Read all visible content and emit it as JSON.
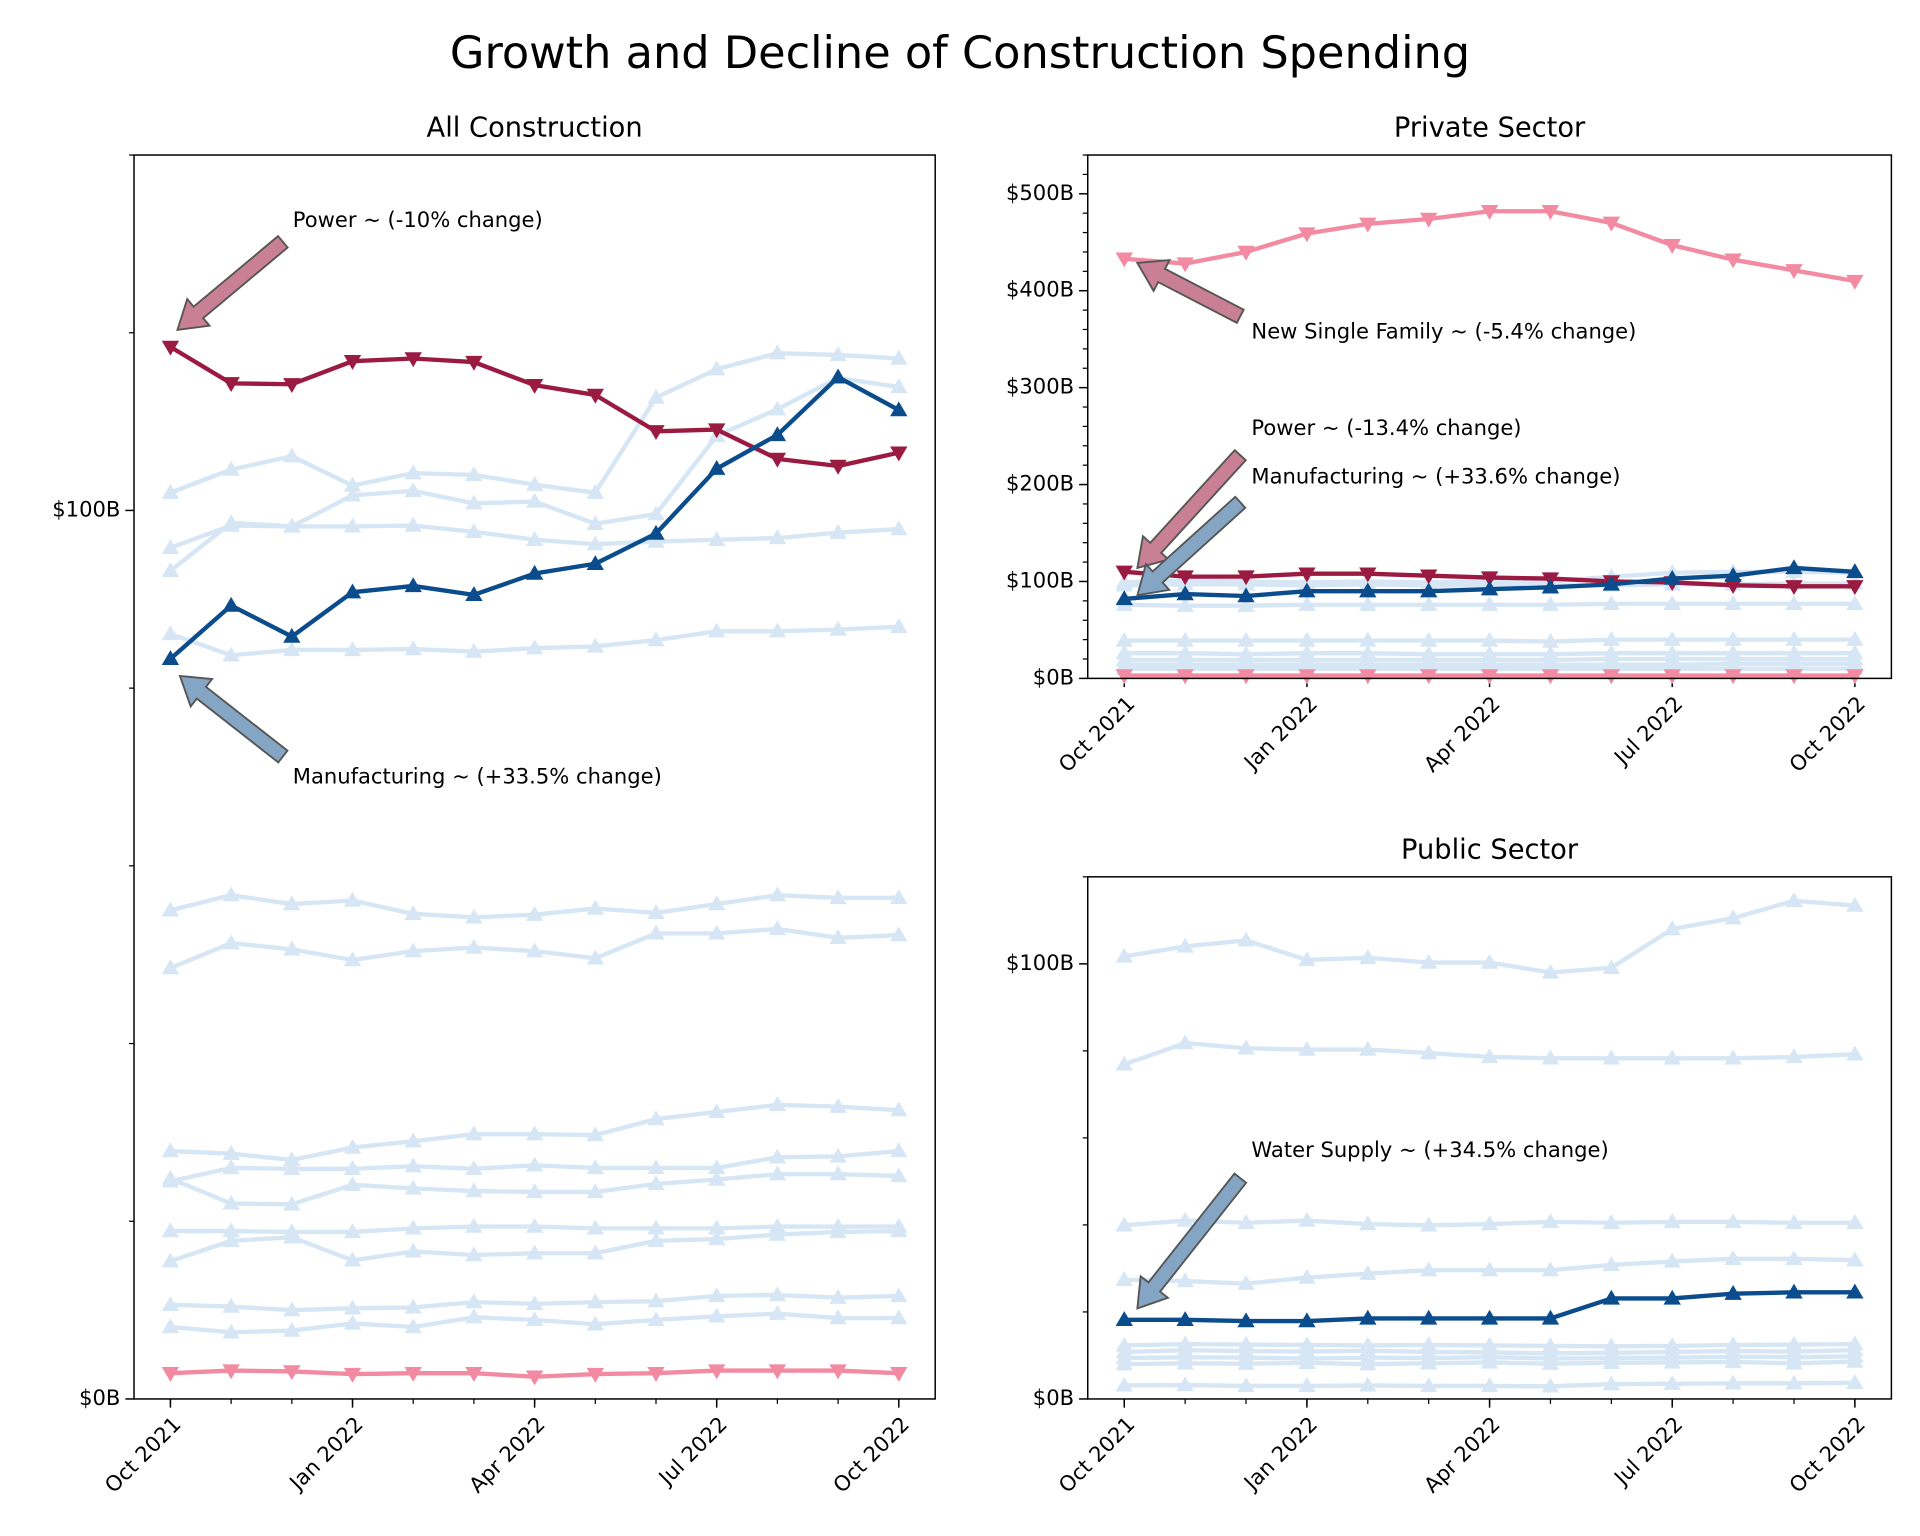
{
  "title": "Growth and Decline of Construction Spending",
  "chart_data": [
    {
      "type": "line",
      "title": "All Construction",
      "x": [
        "2021-10",
        "2021-11",
        "2021-12",
        "2022-01",
        "2022-02",
        "2022-03",
        "2022-04",
        "2022-05",
        "2022-06",
        "2022-07",
        "2022-08",
        "2022-09",
        "2022-10"
      ],
      "xticks": [
        {
          "value": "2021-10",
          "label": "Oct 2021"
        },
        {
          "value": "2022-01",
          "label": "Jan 2022"
        },
        {
          "value": "2022-04",
          "label": "Apr 2022"
        },
        {
          "value": "2022-07",
          "label": "Jul 2022"
        },
        {
          "value": "2022-10",
          "label": "Oct 2022"
        }
      ],
      "ylim": [
        0,
        140
      ],
      "yticks": [
        {
          "value": 0,
          "label": "$0B"
        },
        {
          "value": 100,
          "label": "$100B"
        }
      ],
      "yticks_minor": [
        20,
        40,
        60,
        80,
        120,
        140
      ],
      "series": [
        {
          "color": "#d6e6f4",
          "marker": "^",
          "values": [
            102.0,
            104.6,
            106.1,
            102.8,
            104.2,
            104.0,
            102.9,
            102.0,
            112.7,
            115.9,
            117.7,
            117.5,
            117.1
          ]
        },
        {
          "color": "#d6e6f4",
          "marker": "^",
          "values": [
            93.2,
            98.6,
            98.2,
            101.7,
            102.2,
            100.8,
            101.0,
            98.5,
            99.6,
            108.4,
            111.4,
            114.9,
            113.9
          ]
        },
        {
          "color": "#d6e6f4",
          "marker": "^",
          "values": [
            95.8,
            98.3,
            98.2,
            98.2,
            98.3,
            97.6,
            96.7,
            96.2,
            96.5,
            96.7,
            96.9,
            97.5,
            97.9
          ]
        },
        {
          "color": "#d6e6f4",
          "marker": "^",
          "values": [
            86.1,
            83.7,
            84.3,
            84.3,
            84.4,
            84.1,
            84.5,
            84.7,
            85.4,
            86.4,
            86.4,
            86.6,
            86.9
          ]
        },
        {
          "color": "#d6e6f4",
          "marker": "^",
          "values": [
            55.0,
            56.7,
            55.7,
            56.1,
            54.6,
            54.2,
            54.5,
            55.2,
            54.7,
            55.7,
            56.7,
            56.4,
            56.4
          ]
        },
        {
          "color": "#d6e6f4",
          "marker": "^",
          "values": [
            48.5,
            51.3,
            50.6,
            49.4,
            50.4,
            50.8,
            50.4,
            49.6,
            52.4,
            52.4,
            52.9,
            51.9,
            52.2
          ]
        },
        {
          "color": "#d6e6f4",
          "marker": "^",
          "values": [
            27.9,
            27.6,
            26.9,
            28.3,
            29.0,
            29.8,
            29.8,
            29.7,
            31.5,
            32.3,
            33.1,
            32.9,
            32.5
          ]
        },
        {
          "color": "#d6e6f4",
          "marker": "^",
          "values": [
            24.5,
            26.0,
            25.9,
            25.9,
            26.2,
            25.9,
            26.3,
            26.0,
            26.0,
            26.0,
            27.2,
            27.3,
            27.9
          ]
        },
        {
          "color": "#d6e6f4",
          "marker": "^",
          "values": [
            24.8,
            22.0,
            21.9,
            24.1,
            23.7,
            23.4,
            23.3,
            23.3,
            24.2,
            24.7,
            25.3,
            25.3,
            25.1
          ]
        },
        {
          "color": "#d6e6f4",
          "marker": "^",
          "values": [
            18.9,
            18.9,
            18.8,
            18.8,
            19.2,
            19.4,
            19.4,
            19.2,
            19.2,
            19.2,
            19.4,
            19.4,
            19.4
          ]
        },
        {
          "color": "#d6e6f4",
          "marker": "^",
          "values": [
            15.5,
            17.8,
            18.2,
            15.6,
            16.6,
            16.2,
            16.4,
            16.4,
            17.8,
            18.0,
            18.5,
            18.8,
            18.9
          ]
        },
        {
          "color": "#d6e6f4",
          "marker": "^",
          "values": [
            10.6,
            10.4,
            10.0,
            10.2,
            10.3,
            10.9,
            10.7,
            10.9,
            11.0,
            11.6,
            11.7,
            11.4,
            11.6
          ]
        },
        {
          "color": "#d6e6f4",
          "marker": "^",
          "values": [
            8.1,
            7.5,
            7.7,
            8.5,
            8.1,
            9.2,
            8.9,
            8.4,
            8.9,
            9.3,
            9.6,
            9.1,
            9.1
          ]
        },
        {
          "color": "#f28aa2",
          "marker": "v",
          "values": [
            2.9,
            3.2,
            3.1,
            2.8,
            2.9,
            2.9,
            2.5,
            2.8,
            2.9,
            3.2,
            3.2,
            3.2,
            2.9
          ]
        },
        {
          "color": "#9b1a42",
          "marker": "v",
          "values": [
            118.4,
            114.3,
            114.2,
            116.8,
            117.1,
            116.7,
            114.1,
            113.0,
            108.9,
            109.1,
            105.8,
            105.0,
            106.5
          ]
        },
        {
          "color": "#0b4c8c",
          "marker": "^",
          "values": [
            83.3,
            89.3,
            85.8,
            90.8,
            91.5,
            90.5,
            92.9,
            94.0,
            97.4,
            104.7,
            108.5,
            115.0,
            111.3
          ]
        }
      ],
      "annotations": [
        {
          "text": "Power ~ (-10% change)",
          "color": "#c97f95"
        },
        {
          "text": "Manufacturing ~ (+33.5% change)",
          "color": "#85a5c5"
        }
      ]
    },
    {
      "type": "line",
      "title": "Private Sector",
      "x": [
        "2021-10",
        "2021-11",
        "2021-12",
        "2022-01",
        "2022-02",
        "2022-03",
        "2022-04",
        "2022-05",
        "2022-06",
        "2022-07",
        "2022-08",
        "2022-09",
        "2022-10"
      ],
      "xticks": [
        {
          "value": "2021-10",
          "label": "Oct 2021"
        },
        {
          "value": "2022-01",
          "label": "Jan 2022"
        },
        {
          "value": "2022-04",
          "label": "Apr 2022"
        },
        {
          "value": "2022-07",
          "label": "Jul 2022"
        },
        {
          "value": "2022-10",
          "label": "Oct 2022"
        }
      ],
      "ylim": [
        0,
        540
      ],
      "yticks": [
        {
          "value": 0,
          "label": "$0B"
        },
        {
          "value": 100,
          "label": "$100B"
        },
        {
          "value": 200,
          "label": "$200B"
        },
        {
          "value": 300,
          "label": "$300B"
        },
        {
          "value": 400,
          "label": "$400B"
        },
        {
          "value": 500,
          "label": "$500B"
        }
      ],
      "yticks_minor": [
        20,
        40,
        60,
        80,
        120,
        140,
        160,
        180,
        220,
        240,
        260,
        280,
        320,
        340,
        360,
        380,
        420,
        440,
        460,
        480,
        520,
        540
      ],
      "series": [
        {
          "color": "#d6e6f4",
          "marker": "^",
          "values": [
            99,
            101,
            100,
            99,
            100,
            99,
            100,
            100,
            105,
            109,
            110,
            110,
            109
          ]
        },
        {
          "color": "#d6e6f4",
          "marker": "^",
          "values": [
            96,
            97,
            97,
            96,
            97,
            96,
            96,
            96,
            96,
            97,
            97,
            98,
            98
          ]
        },
        {
          "color": "#d6e6f4",
          "marker": "^",
          "values": [
            76,
            75,
            75,
            76,
            76,
            76,
            76,
            76,
            77,
            77,
            77,
            77,
            77
          ]
        },
        {
          "color": "#d6e6f4",
          "marker": "^",
          "values": [
            39,
            39,
            39,
            39,
            39,
            39,
            39,
            38,
            40,
            40,
            40,
            40,
            40
          ]
        },
        {
          "color": "#d6e6f4",
          "marker": "^",
          "values": [
            26,
            26,
            25,
            26,
            26,
            25,
            25,
            25,
            26,
            26,
            26,
            26,
            26
          ]
        },
        {
          "color": "#d6e6f4",
          "marker": "^",
          "values": [
            19,
            19,
            19,
            19,
            19,
            19,
            19,
            19,
            20,
            20,
            20,
            20,
            20
          ]
        },
        {
          "color": "#d6e6f4",
          "marker": "^",
          "values": [
            14,
            14,
            14,
            14,
            14,
            14,
            14,
            14,
            14,
            14,
            15,
            15,
            15
          ]
        },
        {
          "color": "#d6e6f4",
          "marker": "^",
          "values": [
            10,
            10,
            10,
            10,
            10,
            10,
            10,
            10,
            10,
            10,
            10,
            10,
            10
          ]
        },
        {
          "color": "#f28aa2",
          "marker": "v",
          "values": [
            3,
            3,
            3,
            3,
            3,
            3,
            3,
            3,
            3,
            3,
            3,
            3,
            3
          ]
        },
        {
          "color": "#f28aa2",
          "marker": "v",
          "values": [
            433,
            428,
            440,
            459,
            469,
            474,
            482,
            482,
            470,
            447,
            432,
            421,
            410
          ]
        },
        {
          "color": "#9b1a42",
          "marker": "v",
          "values": [
            110,
            105,
            105,
            108,
            108,
            106,
            104,
            103,
            100,
            99,
            96,
            95,
            95
          ]
        },
        {
          "color": "#0b4c8c",
          "marker": "^",
          "values": [
            82,
            87,
            85,
            90,
            90,
            90,
            92,
            94,
            97,
            103,
            106,
            114,
            110
          ]
        }
      ],
      "annotations": [
        {
          "text": "New Single Family ~ (-5.4% change)",
          "color": "#c97f95"
        },
        {
          "text": "Power ~ (-13.4% change)",
          "color": "#c97f95"
        },
        {
          "text": "Manufacturing ~ (+33.6% change)",
          "color": "#85a5c5"
        }
      ]
    },
    {
      "type": "line",
      "title": "Public Sector",
      "x": [
        "2021-10",
        "2021-11",
        "2021-12",
        "2022-01",
        "2022-02",
        "2022-03",
        "2022-04",
        "2022-05",
        "2022-06",
        "2022-07",
        "2022-08",
        "2022-09",
        "2022-10"
      ],
      "xticks": [
        {
          "value": "2021-10",
          "label": "Oct 2021"
        },
        {
          "value": "2022-01",
          "label": "Jan 2022"
        },
        {
          "value": "2022-04",
          "label": "Apr 2022"
        },
        {
          "value": "2022-07",
          "label": "Jul 2022"
        },
        {
          "value": "2022-10",
          "label": "Oct 2022"
        }
      ],
      "ylim": [
        0,
        120
      ],
      "yticks": [
        {
          "value": 0,
          "label": "$0B"
        },
        {
          "value": 100,
          "label": "$100B"
        }
      ],
      "yticks_minor": [
        20,
        40,
        60,
        80,
        120
      ],
      "series": [
        {
          "color": "#d6e6f4",
          "marker": "^",
          "values": [
            101.7,
            104.0,
            105.4,
            100.9,
            101.4,
            100.3,
            100.3,
            98.0,
            99.1,
            108.0,
            110.5,
            114.5,
            113.4
          ]
        },
        {
          "color": "#d6e6f4",
          "marker": "^",
          "values": [
            76.9,
            81.8,
            80.6,
            80.3,
            80.3,
            79.5,
            78.6,
            78.3,
            78.3,
            78.3,
            78.3,
            78.6,
            79.2
          ]
        },
        {
          "color": "#d6e6f4",
          "marker": "^",
          "values": [
            39.9,
            41.0,
            40.5,
            41.0,
            40.2,
            39.9,
            40.2,
            40.7,
            40.5,
            40.7,
            40.7,
            40.5,
            40.5
          ]
        },
        {
          "color": "#d6e6f4",
          "marker": "^",
          "values": [
            27.4,
            27.1,
            26.5,
            27.9,
            28.8,
            29.6,
            29.6,
            29.6,
            30.8,
            31.6,
            32.2,
            32.2,
            31.9
          ]
        },
        {
          "color": "#d6e6f4",
          "marker": "^",
          "values": [
            12.3,
            12.6,
            12.5,
            12.4,
            12.3,
            12.4,
            12.3,
            12.2,
            12.1,
            12.2,
            12.4,
            12.5,
            12.6
          ]
        },
        {
          "color": "#d6e6f4",
          "marker": "^",
          "values": [
            10.8,
            11.2,
            11.0,
            10.9,
            11.1,
            10.8,
            10.7,
            10.5,
            10.6,
            10.8,
            11.0,
            10.9,
            11.2
          ]
        },
        {
          "color": "#d6e6f4",
          "marker": "^",
          "values": [
            9.4,
            9.6,
            9.5,
            9.3,
            9.5,
            9.4,
            9.6,
            9.3,
            9.4,
            9.5,
            9.7,
            9.6,
            9.8
          ]
        },
        {
          "color": "#d6e6f4",
          "marker": "^",
          "values": [
            8.0,
            8.2,
            8.1,
            8.3,
            8.0,
            8.2,
            8.4,
            8.1,
            8.3,
            8.4,
            8.5,
            8.2,
            8.6
          ]
        },
        {
          "color": "#d6e6f4",
          "marker": "^",
          "values": [
            3.1,
            3.2,
            3.0,
            3.0,
            3.1,
            3.0,
            3.0,
            2.9,
            3.4,
            3.5,
            3.6,
            3.6,
            3.7
          ]
        },
        {
          "color": "#0b4c8c",
          "marker": "^",
          "values": [
            18.2,
            18.2,
            17.9,
            17.9,
            18.5,
            18.5,
            18.5,
            18.5,
            23.1,
            23.1,
            24.2,
            24.5,
            24.5
          ]
        }
      ],
      "annotations": [
        {
          "text": "Water Supply ~ (+34.5% change)",
          "color": "#85a5c5"
        }
      ]
    }
  ]
}
